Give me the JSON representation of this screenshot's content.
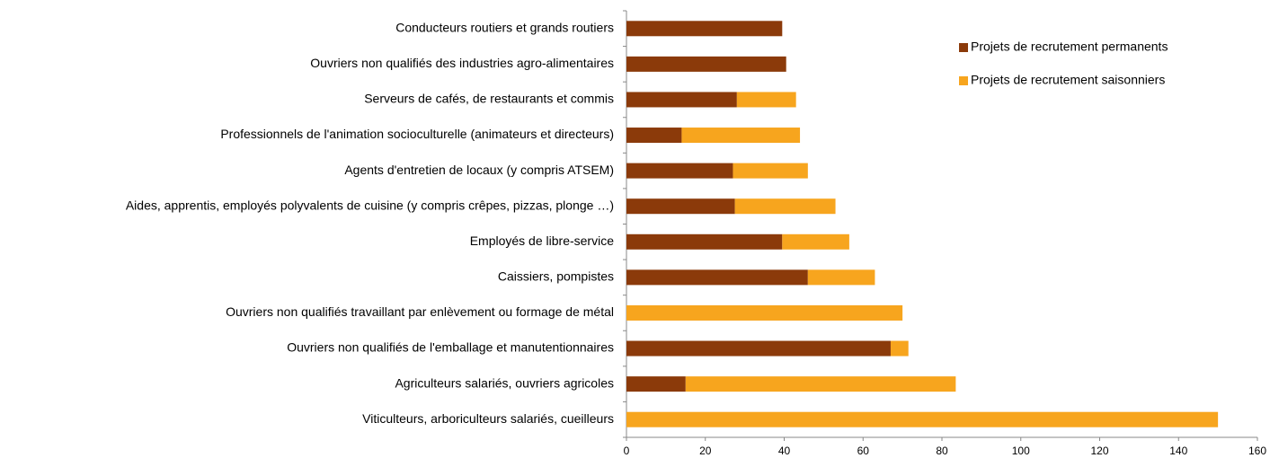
{
  "chart_data": {
    "type": "stacked-barh",
    "categories": [
      "Conducteurs routiers et grands routiers",
      "Ouvriers non qualifiés des industries agro-alimentaires",
      "Serveurs de cafés, de restaurants et commis",
      "Professionnels de l'animation socioculturelle (animateurs et directeurs)",
      "Agents d'entretien de locaux (y compris ATSEM)",
      "Aides, apprentis, employés polyvalents de cuisine (y compris crêpes, pizzas, plonge …)",
      "Employés de libre-service",
      "Caissiers, pompistes",
      "Ouvriers non qualifiés travaillant par enlèvement ou formage de métal",
      "Ouvriers non qualifiés de l'emballage et manutentionnaires",
      "Agriculteurs salariés, ouvriers agricoles",
      "Viticulteurs, arboriculteurs salariés, cueilleurs"
    ],
    "series": [
      {
        "name": "Projets de recrutement permanents",
        "color": "#8b3a0a",
        "values": [
          39.5,
          40.5,
          28,
          14,
          27,
          27.5,
          39.5,
          46,
          0,
          67,
          15,
          0
        ]
      },
      {
        "name": "Projets de recrutement saisonniers",
        "color": "#f7a51e",
        "values": [
          0,
          0,
          15,
          30,
          19,
          25.5,
          17,
          17,
          70,
          4.5,
          68.5,
          150
        ]
      }
    ],
    "xlim": [
      0,
      160
    ],
    "xticks": [
      0,
      20,
      40,
      60,
      80,
      100,
      120,
      140,
      160
    ],
    "grid": false,
    "legend": "top-right"
  }
}
